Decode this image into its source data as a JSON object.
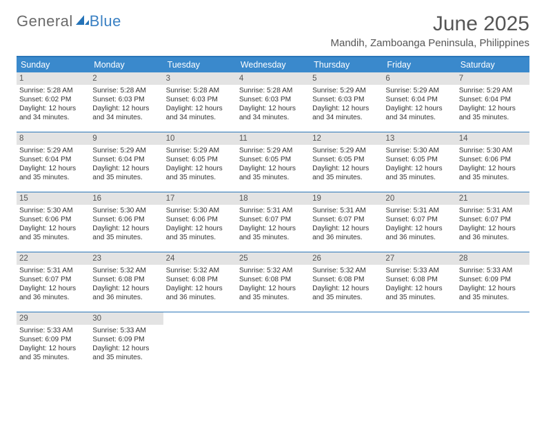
{
  "logo": {
    "text1": "General",
    "text2": "Blue"
  },
  "title": "June 2025",
  "location": "Mandih, Zamboanga Peninsula, Philippines",
  "day_headers": [
    "Sunday",
    "Monday",
    "Tuesday",
    "Wednesday",
    "Thursday",
    "Friday",
    "Saturday"
  ],
  "colors": {
    "header_bg": "#3a89cc",
    "rule": "#2a76b8",
    "daynum_bg": "#e3e3e3",
    "text": "#333333",
    "title_text": "#555555"
  },
  "weeks": [
    [
      {
        "n": "1",
        "sr": "Sunrise: 5:28 AM",
        "ss": "Sunset: 6:02 PM",
        "d1": "Daylight: 12 hours",
        "d2": "and 34 minutes."
      },
      {
        "n": "2",
        "sr": "Sunrise: 5:28 AM",
        "ss": "Sunset: 6:03 PM",
        "d1": "Daylight: 12 hours",
        "d2": "and 34 minutes."
      },
      {
        "n": "3",
        "sr": "Sunrise: 5:28 AM",
        "ss": "Sunset: 6:03 PM",
        "d1": "Daylight: 12 hours",
        "d2": "and 34 minutes."
      },
      {
        "n": "4",
        "sr": "Sunrise: 5:28 AM",
        "ss": "Sunset: 6:03 PM",
        "d1": "Daylight: 12 hours",
        "d2": "and 34 minutes."
      },
      {
        "n": "5",
        "sr": "Sunrise: 5:29 AM",
        "ss": "Sunset: 6:03 PM",
        "d1": "Daylight: 12 hours",
        "d2": "and 34 minutes."
      },
      {
        "n": "6",
        "sr": "Sunrise: 5:29 AM",
        "ss": "Sunset: 6:04 PM",
        "d1": "Daylight: 12 hours",
        "d2": "and 34 minutes."
      },
      {
        "n": "7",
        "sr": "Sunrise: 5:29 AM",
        "ss": "Sunset: 6:04 PM",
        "d1": "Daylight: 12 hours",
        "d2": "and 35 minutes."
      }
    ],
    [
      {
        "n": "8",
        "sr": "Sunrise: 5:29 AM",
        "ss": "Sunset: 6:04 PM",
        "d1": "Daylight: 12 hours",
        "d2": "and 35 minutes."
      },
      {
        "n": "9",
        "sr": "Sunrise: 5:29 AM",
        "ss": "Sunset: 6:04 PM",
        "d1": "Daylight: 12 hours",
        "d2": "and 35 minutes."
      },
      {
        "n": "10",
        "sr": "Sunrise: 5:29 AM",
        "ss": "Sunset: 6:05 PM",
        "d1": "Daylight: 12 hours",
        "d2": "and 35 minutes."
      },
      {
        "n": "11",
        "sr": "Sunrise: 5:29 AM",
        "ss": "Sunset: 6:05 PM",
        "d1": "Daylight: 12 hours",
        "d2": "and 35 minutes."
      },
      {
        "n": "12",
        "sr": "Sunrise: 5:29 AM",
        "ss": "Sunset: 6:05 PM",
        "d1": "Daylight: 12 hours",
        "d2": "and 35 minutes."
      },
      {
        "n": "13",
        "sr": "Sunrise: 5:30 AM",
        "ss": "Sunset: 6:05 PM",
        "d1": "Daylight: 12 hours",
        "d2": "and 35 minutes."
      },
      {
        "n": "14",
        "sr": "Sunrise: 5:30 AM",
        "ss": "Sunset: 6:06 PM",
        "d1": "Daylight: 12 hours",
        "d2": "and 35 minutes."
      }
    ],
    [
      {
        "n": "15",
        "sr": "Sunrise: 5:30 AM",
        "ss": "Sunset: 6:06 PM",
        "d1": "Daylight: 12 hours",
        "d2": "and 35 minutes."
      },
      {
        "n": "16",
        "sr": "Sunrise: 5:30 AM",
        "ss": "Sunset: 6:06 PM",
        "d1": "Daylight: 12 hours",
        "d2": "and 35 minutes."
      },
      {
        "n": "17",
        "sr": "Sunrise: 5:30 AM",
        "ss": "Sunset: 6:06 PM",
        "d1": "Daylight: 12 hours",
        "d2": "and 35 minutes."
      },
      {
        "n": "18",
        "sr": "Sunrise: 5:31 AM",
        "ss": "Sunset: 6:07 PM",
        "d1": "Daylight: 12 hours",
        "d2": "and 35 minutes."
      },
      {
        "n": "19",
        "sr": "Sunrise: 5:31 AM",
        "ss": "Sunset: 6:07 PM",
        "d1": "Daylight: 12 hours",
        "d2": "and 36 minutes."
      },
      {
        "n": "20",
        "sr": "Sunrise: 5:31 AM",
        "ss": "Sunset: 6:07 PM",
        "d1": "Daylight: 12 hours",
        "d2": "and 36 minutes."
      },
      {
        "n": "21",
        "sr": "Sunrise: 5:31 AM",
        "ss": "Sunset: 6:07 PM",
        "d1": "Daylight: 12 hours",
        "d2": "and 36 minutes."
      }
    ],
    [
      {
        "n": "22",
        "sr": "Sunrise: 5:31 AM",
        "ss": "Sunset: 6:07 PM",
        "d1": "Daylight: 12 hours",
        "d2": "and 36 minutes."
      },
      {
        "n": "23",
        "sr": "Sunrise: 5:32 AM",
        "ss": "Sunset: 6:08 PM",
        "d1": "Daylight: 12 hours",
        "d2": "and 36 minutes."
      },
      {
        "n": "24",
        "sr": "Sunrise: 5:32 AM",
        "ss": "Sunset: 6:08 PM",
        "d1": "Daylight: 12 hours",
        "d2": "and 36 minutes."
      },
      {
        "n": "25",
        "sr": "Sunrise: 5:32 AM",
        "ss": "Sunset: 6:08 PM",
        "d1": "Daylight: 12 hours",
        "d2": "and 35 minutes."
      },
      {
        "n": "26",
        "sr": "Sunrise: 5:32 AM",
        "ss": "Sunset: 6:08 PM",
        "d1": "Daylight: 12 hours",
        "d2": "and 35 minutes."
      },
      {
        "n": "27",
        "sr": "Sunrise: 5:33 AM",
        "ss": "Sunset: 6:08 PM",
        "d1": "Daylight: 12 hours",
        "d2": "and 35 minutes."
      },
      {
        "n": "28",
        "sr": "Sunrise: 5:33 AM",
        "ss": "Sunset: 6:09 PM",
        "d1": "Daylight: 12 hours",
        "d2": "and 35 minutes."
      }
    ],
    [
      {
        "n": "29",
        "sr": "Sunrise: 5:33 AM",
        "ss": "Sunset: 6:09 PM",
        "d1": "Daylight: 12 hours",
        "d2": "and 35 minutes."
      },
      {
        "n": "30",
        "sr": "Sunrise: 5:33 AM",
        "ss": "Sunset: 6:09 PM",
        "d1": "Daylight: 12 hours",
        "d2": "and 35 minutes."
      },
      null,
      null,
      null,
      null,
      null
    ]
  ]
}
